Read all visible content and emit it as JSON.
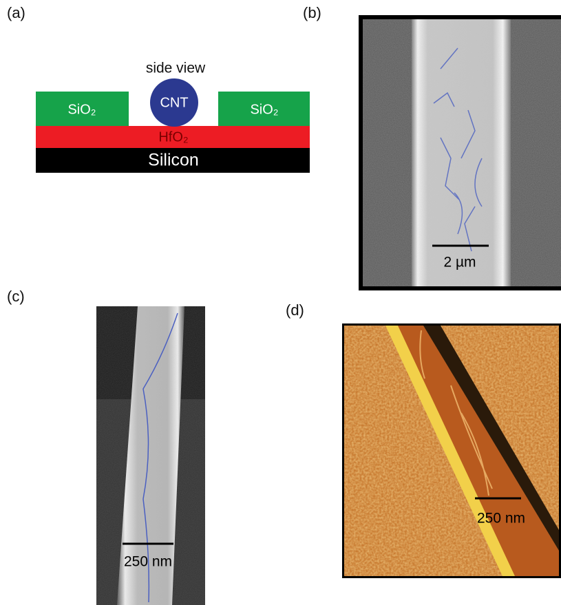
{
  "panel_a": {
    "label": "(a)",
    "caption": "side view",
    "cnt": "CNT",
    "left_oxide": "SiO₂",
    "right_oxide": "SiO₂",
    "dielectric": "HfO₂",
    "substrate": "Silicon"
  },
  "panel_b": {
    "label": "(b)",
    "scale_bar": "2 µm"
  },
  "panel_c": {
    "label": "(c)",
    "scale_bar": "250 nm"
  },
  "panel_d": {
    "label": "(d)",
    "scale_bar": "250 nm"
  }
}
